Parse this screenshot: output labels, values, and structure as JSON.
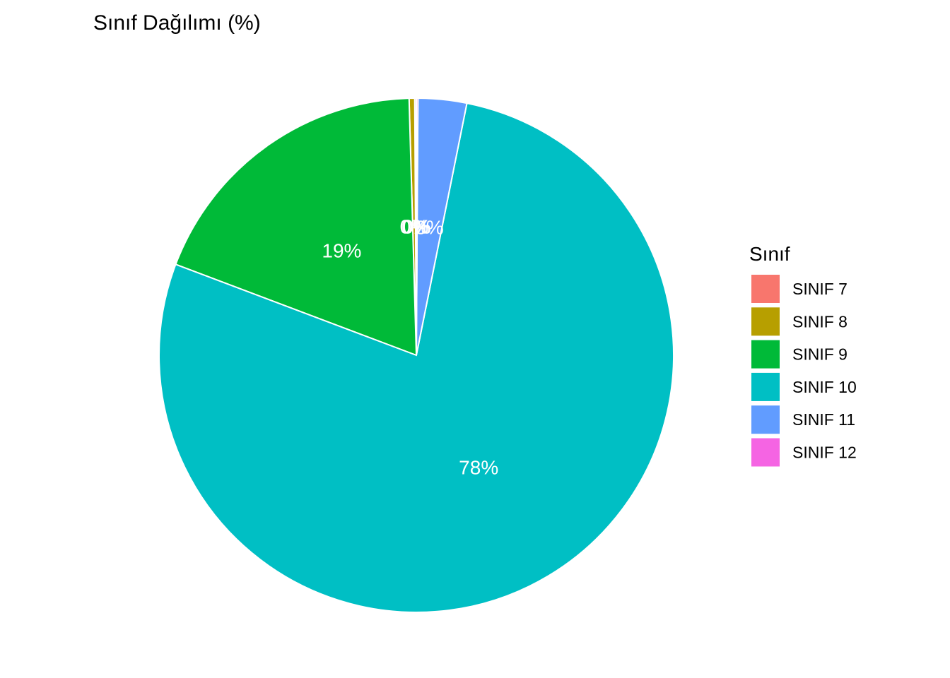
{
  "chart_data": {
    "type": "pie",
    "title": "Sınıf Dağılımı (%)",
    "legend_title": "Sınıf",
    "legend_position": "right",
    "start": "top",
    "direction": "counter-clockwise",
    "slices": [
      {
        "name": "SINIF 7",
        "value": 0.1,
        "color": "#F8766D",
        "label": "0%"
      },
      {
        "name": "SINIF 8",
        "value": 0.35,
        "color": "#B79F00",
        "label": "0%"
      },
      {
        "name": "SINIF 9",
        "value": 18.8,
        "color": "#00BA38",
        "label": "19%"
      },
      {
        "name": "SINIF 10",
        "value": 77.6,
        "color": "#00BFC4",
        "label": "78%"
      },
      {
        "name": "SINIF 11",
        "value": 3.05,
        "color": "#619CFF",
        "label": "3%"
      },
      {
        "name": "SINIF 12",
        "value": 0.1,
        "color": "#F564E3",
        "label": "0%"
      }
    ]
  }
}
